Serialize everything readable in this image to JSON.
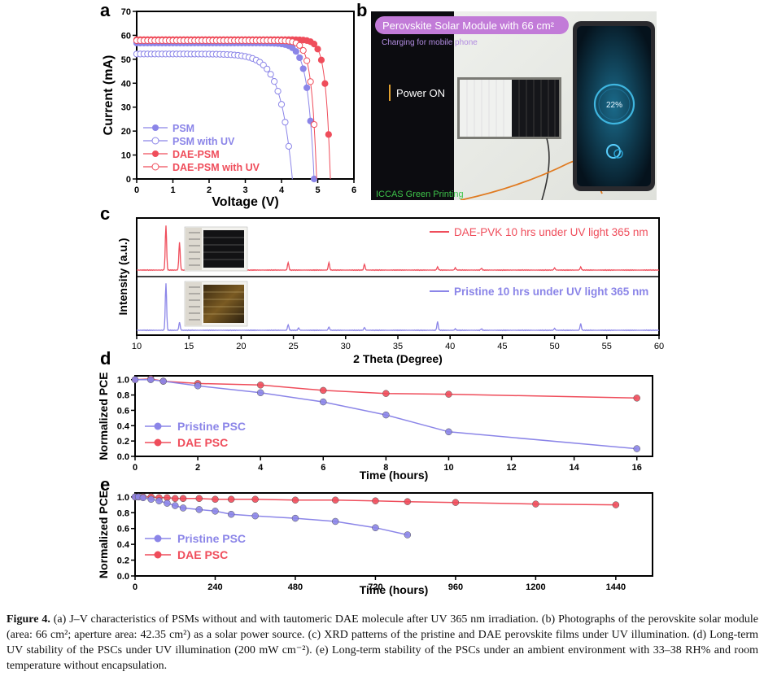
{
  "panels": {
    "a": {
      "letter": "a"
    },
    "b": {
      "letter": "b"
    },
    "c": {
      "letter": "c"
    },
    "d": {
      "letter": "d"
    },
    "e": {
      "letter": "e"
    }
  },
  "photo": {
    "banner_title": "Perovskite Solar Module with 66 cm²",
    "banner_sub": "Charging for mobile phone",
    "power_label": "Power ON",
    "phone_percent": "22%",
    "watermark": "ICCAS Green Printing",
    "colors": {
      "banner": "#c27bd8",
      "dark_bg": "#0c0c10",
      "wall": "#e9ebe6",
      "watermark": "#3ec44a"
    }
  },
  "chart_data": [
    {
      "id": "a",
      "type": "scatter",
      "xlabel": "Voltage (V)",
      "ylabel": "Current (mA)",
      "xlim": [
        0,
        6
      ],
      "ylim": [
        0,
        70
      ],
      "xticks": [
        0,
        1,
        2,
        3,
        4,
        5,
        6
      ],
      "yticks": [
        0,
        10,
        20,
        30,
        40,
        50,
        60,
        70
      ],
      "legend": "bottom-left",
      "series": [
        {
          "name": "PSM",
          "color": "#8b85e8",
          "marker": "filled",
          "voc": 4.9,
          "jsc": 56.8,
          "knee": 0.18
        },
        {
          "name": "PSM with UV",
          "color": "#8b85e8",
          "marker": "open",
          "voc": 4.3,
          "jsc": 52.2,
          "knee": 0.33
        },
        {
          "name": "DAE-PSM",
          "color": "#ef4d5b",
          "marker": "filled",
          "voc": 5.35,
          "jsc": 58.2,
          "knee": 0.13
        },
        {
          "name": "DAE-PSM with UV",
          "color": "#ef4d5b",
          "marker": "open",
          "voc": 4.97,
          "jsc": 57.8,
          "knee": 0.14
        }
      ]
    },
    {
      "id": "c",
      "type": "line",
      "xlabel": "2 Theta (Degree)",
      "ylabel": "Intensity (a.u.)",
      "xlim": [
        10,
        60
      ],
      "xticks": [
        10,
        15,
        20,
        25,
        30,
        35,
        40,
        45,
        50,
        55,
        60
      ],
      "series": [
        {
          "name": "DAE-PVK 10 hrs under UV light 365 nm",
          "color": "#ef4d5b",
          "peaks": [
            [
              12.8,
              1.0
            ],
            [
              14.1,
              0.62
            ],
            [
              24.5,
              0.17
            ],
            [
              28.4,
              0.17
            ],
            [
              31.8,
              0.13
            ],
            [
              38.8,
              0.07
            ],
            [
              40.5,
              0.05
            ],
            [
              43.0,
              0.04
            ],
            [
              50.0,
              0.05
            ],
            [
              52.5,
              0.07
            ]
          ]
        },
        {
          "name": "Pristine 10 hrs under UV light 365 nm",
          "color": "#8b85e8",
          "peaks": [
            [
              12.8,
              1.0
            ],
            [
              14.1,
              0.17
            ],
            [
              24.5,
              0.12
            ],
            [
              25.5,
              0.05
            ],
            [
              28.4,
              0.07
            ],
            [
              31.8,
              0.06
            ],
            [
              38.8,
              0.18
            ],
            [
              40.5,
              0.03
            ],
            [
              43.0,
              0.03
            ],
            [
              50.0,
              0.04
            ],
            [
              52.5,
              0.14
            ]
          ]
        }
      ]
    },
    {
      "id": "d",
      "type": "line",
      "xlabel": "Time (hours)",
      "ylabel": "Normalized PCE",
      "xlim": [
        0,
        16.5
      ],
      "ylim": [
        0,
        1.05
      ],
      "xticks": [
        0,
        2,
        4,
        6,
        8,
        10,
        12,
        14,
        16
      ],
      "yticks": [
        0.0,
        0.2,
        0.4,
        0.6,
        0.8,
        1.0
      ],
      "legend": "bottom-left",
      "series": [
        {
          "name": "Pristine PSC",
          "color": "#8b85e8",
          "x": [
            0,
            0.5,
            0.9,
            2,
            4,
            6,
            8,
            10,
            16
          ],
          "y": [
            1.0,
            1.0,
            0.98,
            0.92,
            0.83,
            0.71,
            0.54,
            0.32,
            0.1
          ]
        },
        {
          "name": "DAE PSC",
          "color": "#ef4d5b",
          "x": [
            0,
            0.5,
            0.9,
            2,
            4,
            6,
            8,
            10,
            16
          ],
          "y": [
            1.0,
            1.01,
            0.98,
            0.95,
            0.93,
            0.86,
            0.82,
            0.81,
            0.76
          ]
        }
      ]
    },
    {
      "id": "e",
      "type": "line",
      "xlabel": "Time (hours)",
      "ylabel": "Normalized PCE",
      "xlim": [
        0,
        1550
      ],
      "ylim": [
        0,
        1.05
      ],
      "xticks": [
        0,
        240,
        480,
        720,
        960,
        1200,
        1440
      ],
      "yticks": [
        0.0,
        0.2,
        0.4,
        0.6,
        0.8,
        1.0
      ],
      "legend": "bottom-left",
      "series": [
        {
          "name": "Pristine PSC",
          "color": "#8b85e8",
          "x": [
            0,
            10,
            24,
            48,
            72,
            96,
            120,
            144,
            192,
            240,
            288,
            360,
            480,
            600,
            720,
            816
          ],
          "y": [
            1.0,
            1.0,
            0.99,
            0.97,
            0.95,
            0.92,
            0.89,
            0.86,
            0.84,
            0.82,
            0.78,
            0.76,
            0.73,
            0.69,
            0.61,
            0.52
          ]
        },
        {
          "name": "DAE PSC",
          "color": "#ef4d5b",
          "x": [
            0,
            10,
            24,
            48,
            72,
            96,
            120,
            144,
            192,
            240,
            288,
            360,
            480,
            600,
            720,
            816,
            960,
            1200,
            1440
          ],
          "y": [
            1.0,
            1.0,
            1.0,
            1.0,
            0.99,
            0.99,
            0.98,
            0.98,
            0.98,
            0.97,
            0.97,
            0.97,
            0.96,
            0.96,
            0.95,
            0.94,
            0.93,
            0.91,
            0.9
          ]
        }
      ]
    }
  ],
  "caption": {
    "label": "Figure 4.",
    "text": " (a) J–V characteristics of PSMs without and with tautomeric DAE molecule after UV 365 nm irradiation. (b) Photographs of the perovskite solar module (area: 66 cm²; aperture area: 42.35 cm²) as a solar power source. (c) XRD patterns of the pristine and DAE perovskite films under UV illumination. (d) Long-term UV stability of the PSCs under UV illumination (200 mW cm⁻²). (e) Long-term stability of the PSCs under an ambient environment with 33–38 RH% and room temperature without encapsulation."
  }
}
